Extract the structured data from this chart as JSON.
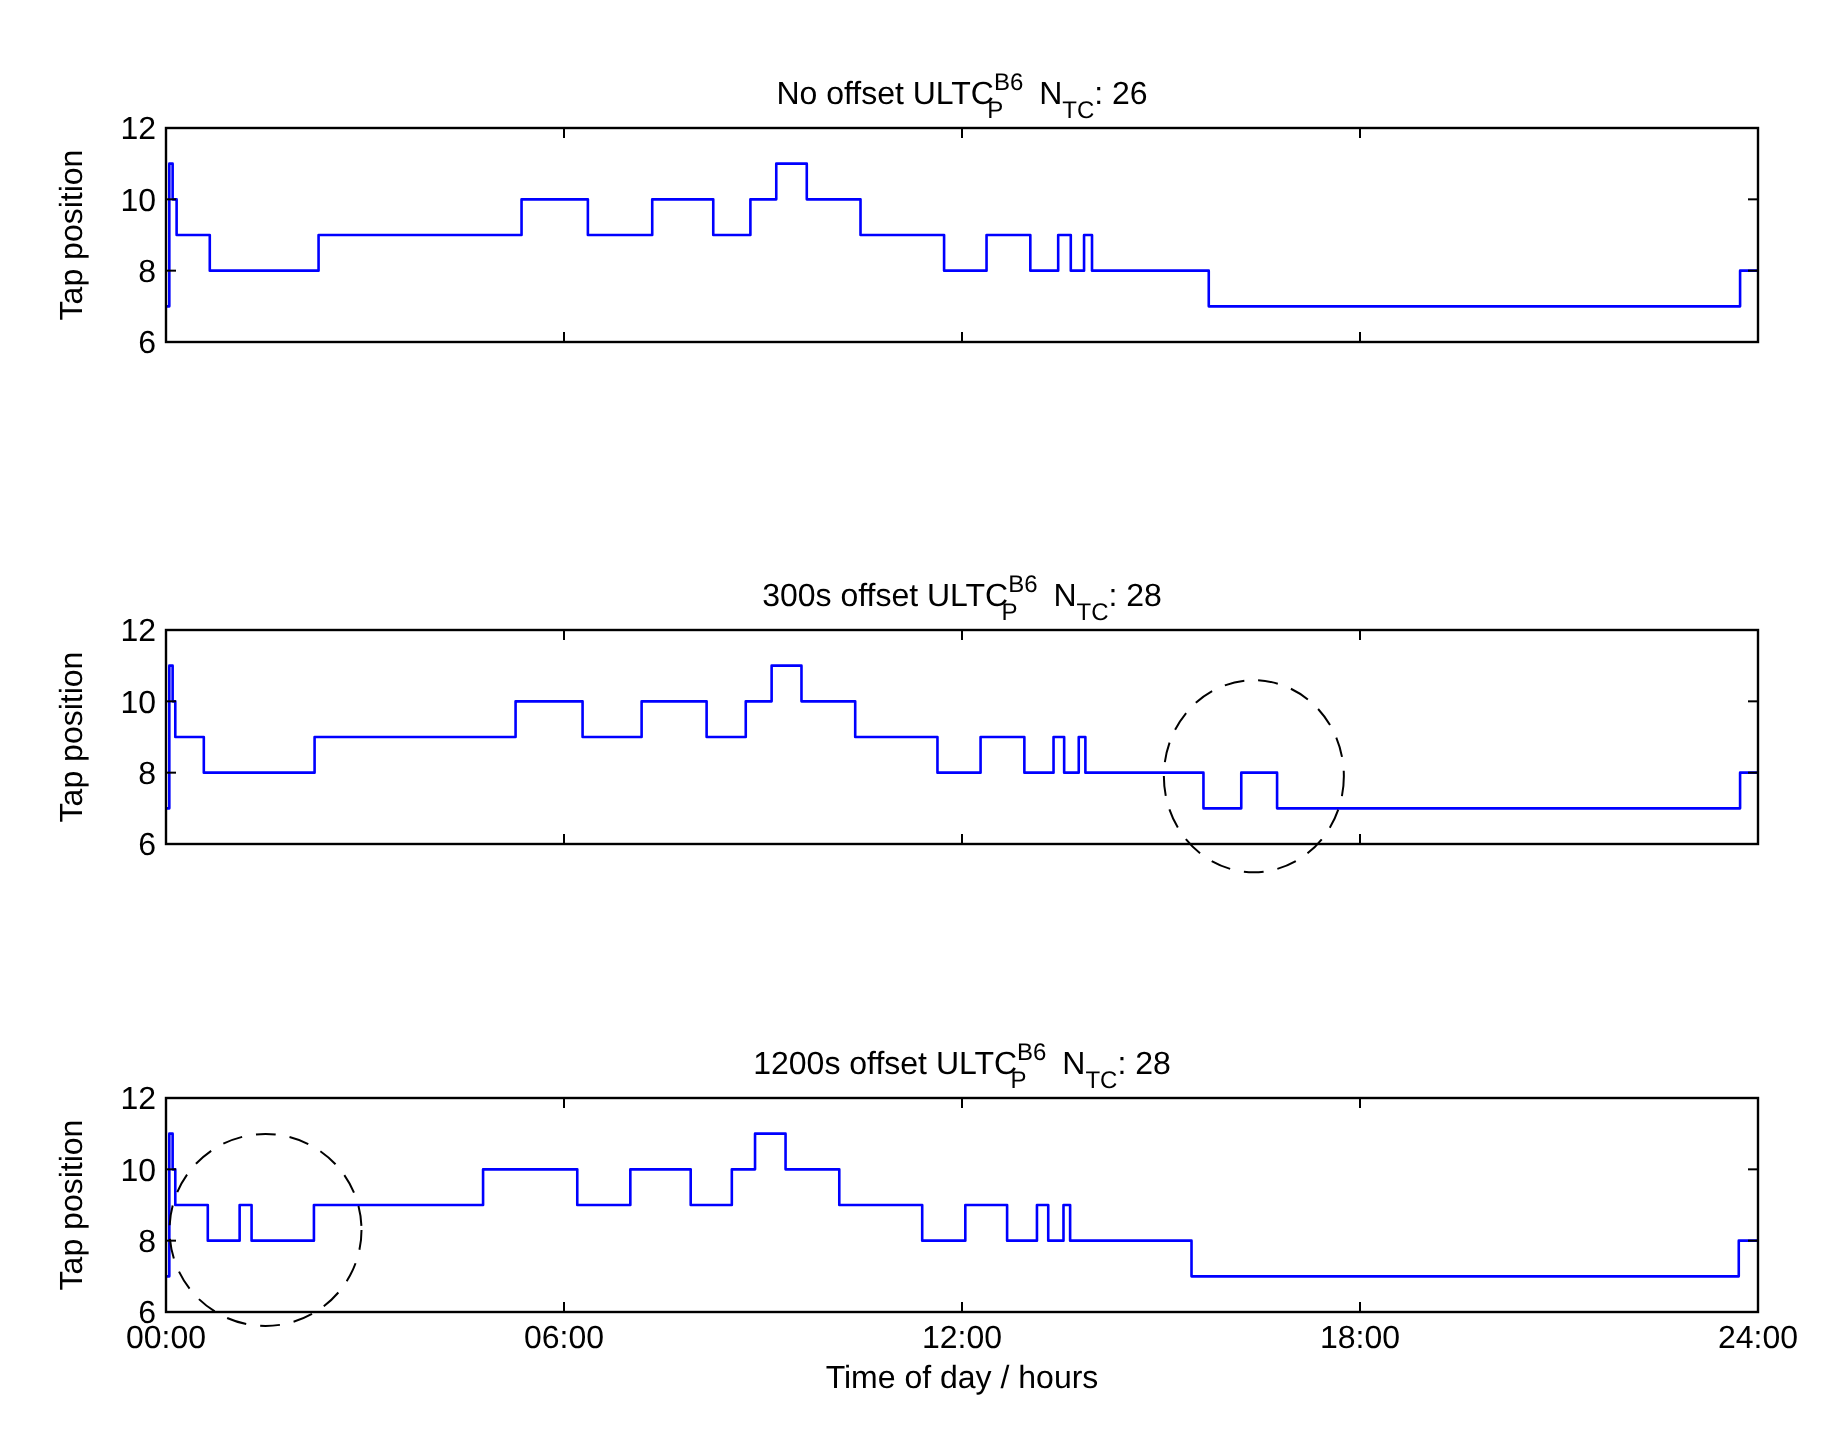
{
  "chart_data": [
    {
      "type": "step",
      "title": "No offset ULTC$^{B6}$$_{P}$  N$_{TC}$: 26",
      "ylabel": "Tap position",
      "xlim": [
        0,
        24
      ],
      "ylim": [
        6,
        12
      ],
      "yticks": [
        6,
        8,
        10,
        12
      ],
      "xticks": [
        {
          "value": 0,
          "label": null
        },
        {
          "value": 6,
          "label": null
        },
        {
          "value": 12,
          "label": null
        },
        {
          "value": 18,
          "label": null
        },
        {
          "value": 24,
          "label": null
        }
      ],
      "tick_labels": "y",
      "series": [
        {
          "color": "#0000ff",
          "x": [
            0,
            0.05,
            0.1,
            0.16,
            0.66,
            2.3,
            5.36,
            6.36,
            7.33,
            8.25,
            8.81,
            9.2,
            9.66,
            10.47,
            11.73,
            12.37,
            13.03,
            13.45,
            13.64,
            13.84,
            13.96,
            15.72,
            23.73,
            24
          ],
          "values": [
            7,
            11,
            10,
            9,
            8,
            9,
            10,
            9,
            10,
            9,
            10,
            11,
            10,
            9,
            8,
            9,
            8,
            9,
            8,
            9,
            8,
            7,
            8,
            8
          ]
        }
      ]
    },
    {
      "type": "step",
      "title": "300s offset ULTC$^{B6}$$_{P}$  N$_{TC}$: 28",
      "ylabel": "Tap position",
      "xlim": [
        0,
        24
      ],
      "ylim": [
        6,
        12
      ],
      "yticks": [
        6,
        8,
        10,
        12
      ],
      "xticks": [
        {
          "value": 0,
          "label": null
        },
        {
          "value": 6,
          "label": null
        },
        {
          "value": 12,
          "label": null
        },
        {
          "value": 18,
          "label": null
        },
        {
          "value": 24,
          "label": null
        }
      ],
      "tick_labels": "y",
      "series": [
        {
          "color": "#0000ff",
          "x": [
            0,
            0.05,
            0.1,
            0.14,
            0.57,
            2.24,
            5.27,
            6.28,
            7.17,
            8.15,
            8.74,
            9.13,
            9.58,
            10.39,
            11.63,
            12.28,
            12.94,
            13.38,
            13.54,
            13.76,
            13.86,
            15.64,
            16.21,
            16.75,
            23.73,
            24
          ],
          "values": [
            7,
            11,
            10,
            9,
            8,
            9,
            10,
            9,
            10,
            9,
            10,
            11,
            10,
            9,
            8,
            9,
            8,
            9,
            8,
            9,
            8,
            7,
            8,
            7,
            8,
            8
          ]
        }
      ]
    },
    {
      "type": "step",
      "title": "1200s offset ULTC$^{B6}$$_{P}$  N$_{TC}$: 28",
      "xlabel": "Time of day / hours",
      "ylabel": "Tap position",
      "xlim": [
        0,
        24
      ],
      "ylim": [
        6,
        12
      ],
      "yticks": [
        6,
        8,
        10,
        12
      ],
      "xticks": [
        {
          "value": 0,
          "label": "00:00"
        },
        {
          "value": 6,
          "label": "06:00"
        },
        {
          "value": 12,
          "label": "12:00"
        },
        {
          "value": 18,
          "label": "18:00"
        },
        {
          "value": 24,
          "label": "24:00"
        }
      ],
      "series": [
        {
          "color": "#0000ff",
          "x": [
            0,
            0.05,
            0.1,
            0.14,
            0.63,
            1.11,
            1.29,
            2.23,
            4.78,
            6.2,
            7.0,
            7.91,
            8.53,
            8.88,
            9.34,
            10.15,
            11.4,
            12.05,
            12.68,
            13.13,
            13.3,
            13.53,
            13.63,
            15.46,
            23.71,
            24
          ],
          "values": [
            7,
            11,
            10,
            9,
            8,
            9,
            8,
            9,
            10,
            9,
            10,
            9,
            10,
            11,
            10,
            9,
            8,
            9,
            8,
            9,
            8,
            9,
            8,
            7,
            8,
            8
          ]
        }
      ]
    }
  ]
}
